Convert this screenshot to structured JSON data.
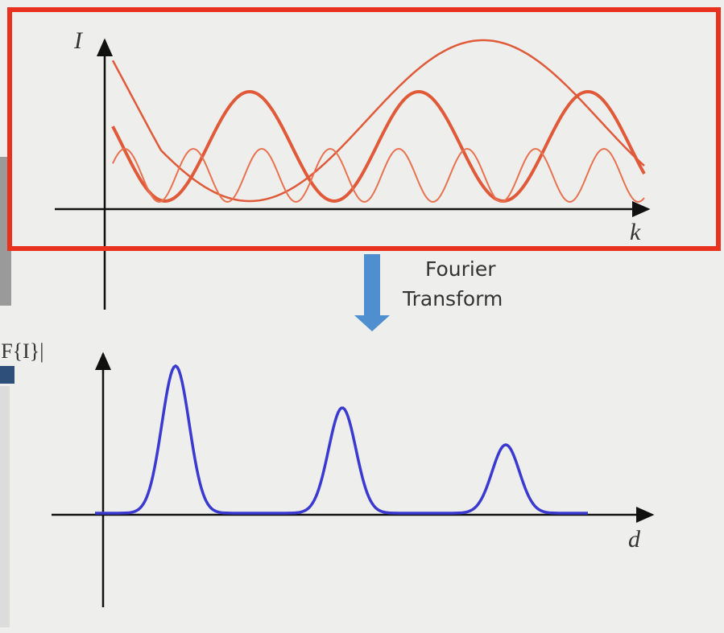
{
  "top_plot": {
    "y_label": "I",
    "x_label": "k"
  },
  "arrow": {
    "line1": "Fourier",
    "line2": "Transform"
  },
  "bottom_plot": {
    "y_label": "|F{I}|",
    "x_label": "d"
  }
}
